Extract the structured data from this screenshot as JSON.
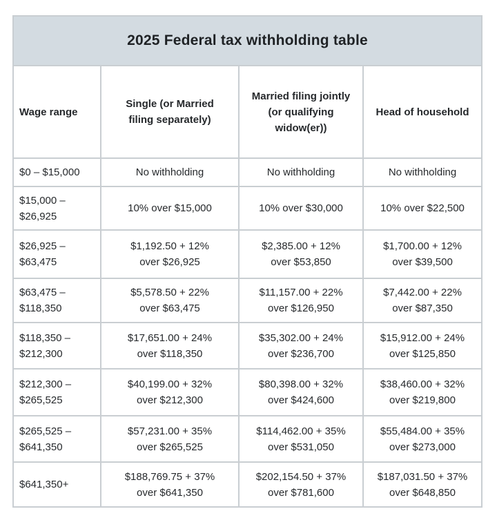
{
  "title": "2025 Federal tax withholding table",
  "colors": {
    "title_band_bg": "#d3dbe1",
    "border": "#c9ced2",
    "text": "#26292c"
  },
  "table": {
    "columns": [
      "Wage range",
      "Single (or Married\nfiling separately)",
      "Married filing jointly\n(or qualifying\nwidow(er))",
      "Head of household"
    ],
    "rows": [
      [
        "$0 – $15,000",
        "No withholding",
        "No withholding",
        "No withholding"
      ],
      [
        "$15,000 –\n$26,925",
        "10% over $15,000",
        "10% over $30,000",
        "10% over $22,500"
      ],
      [
        "$26,925 –\n$63,475",
        "$1,192.50 + 12%\nover $26,925",
        "$2,385.00 + 12%\nover $53,850",
        "$1,700.00 + 12%\nover $39,500"
      ],
      [
        "$63,475 –\n$118,350",
        "$5,578.50 + 22%\nover $63,475",
        "$11,157.00 + 22%\nover $126,950",
        "$7,442.00 + 22%\nover $87,350"
      ],
      [
        "$118,350 –\n$212,300",
        "$17,651.00 + 24%\nover $118,350",
        "$35,302.00 + 24%\nover $236,700",
        "$15,912.00 + 24%\nover $125,850"
      ],
      [
        "$212,300 –\n$265,525",
        "$40,199.00 + 32%\nover $212,300",
        "$80,398.00 + 32%\nover $424,600",
        "$38,460.00 + 32%\nover $219,800"
      ],
      [
        "$265,525 –\n$641,350",
        "$57,231.00 + 35%\nover $265,525",
        "$114,462.00 + 35%\nover $531,050",
        "$55,484.00 + 35%\nover $273,000"
      ],
      [
        "$641,350+",
        "$188,769.75 + 37%\nover $641,350",
        "$202,154.50 + 37%\nover $781,600",
        "$187,031.50 + 37%\nover $648,850"
      ]
    ]
  }
}
